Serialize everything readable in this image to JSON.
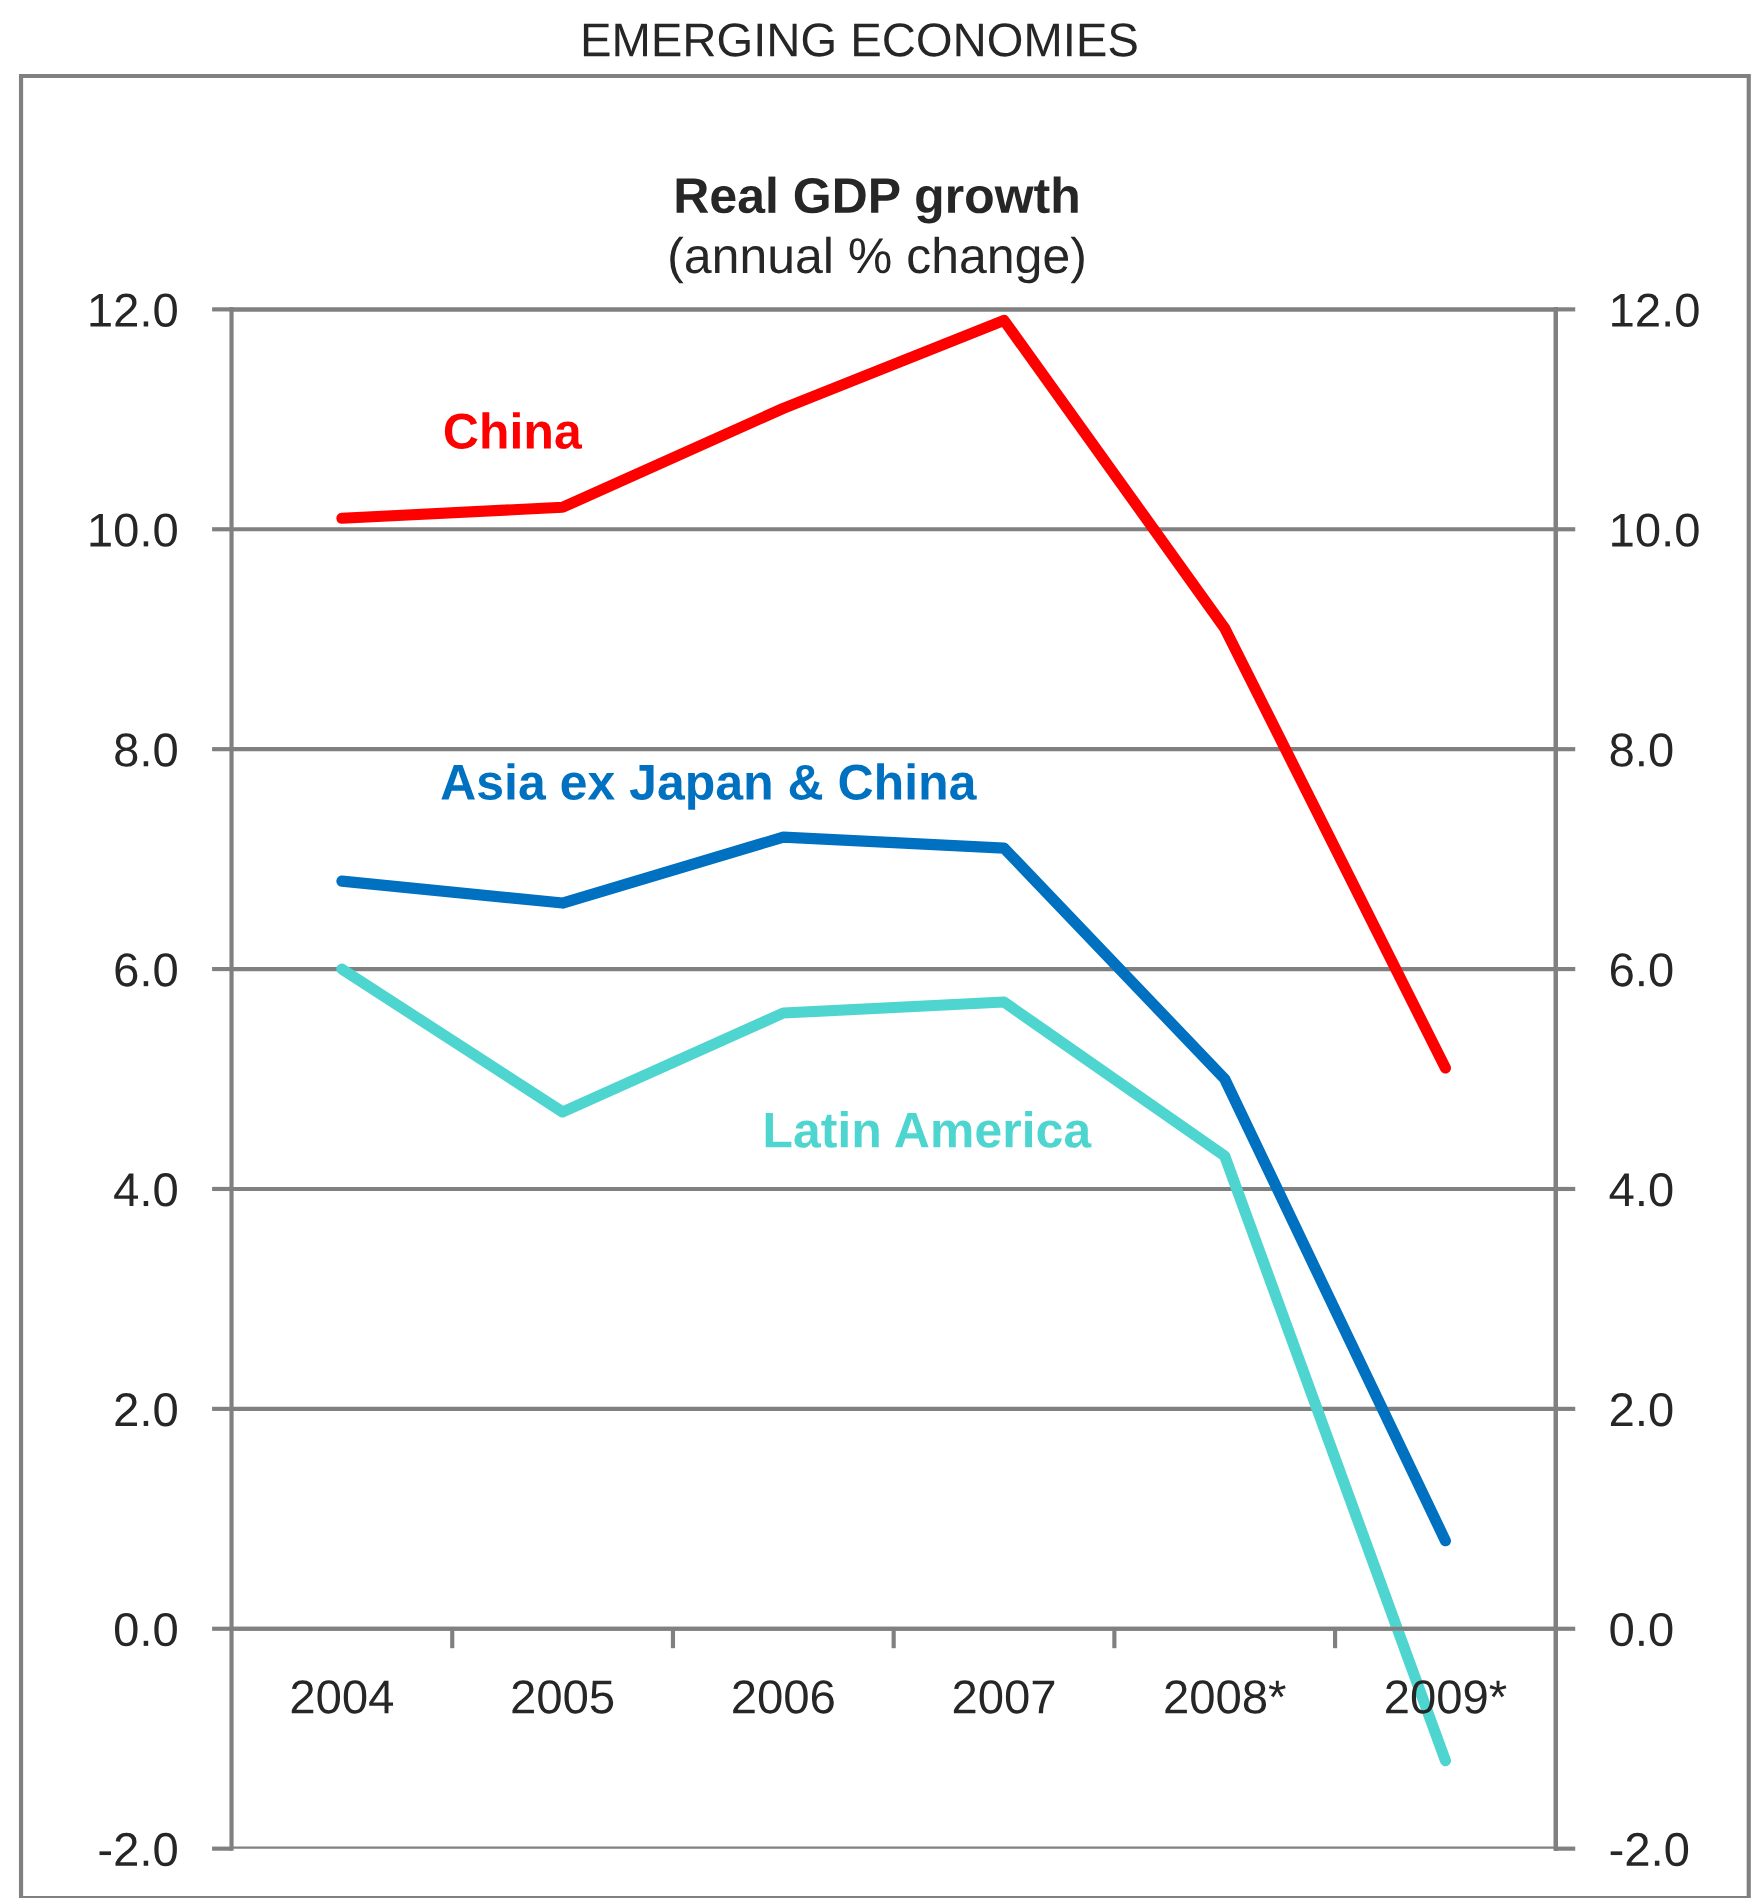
{
  "chart_data": {
    "type": "line",
    "title": "Real GDP growth",
    "subtitle": "(annual % change)",
    "annotations": [
      "EMERGING ECONOMIES"
    ],
    "categories": [
      "2004",
      "2005",
      "2006",
      "2007",
      "2008*",
      "2009*"
    ],
    "series": [
      {
        "name": "China",
        "color": "#ff0000",
        "values": [
          10.1,
          10.2,
          11.1,
          11.9,
          9.1,
          5.1
        ]
      },
      {
        "name": "Asia ex Japan & China",
        "color": "#0070c0",
        "values": [
          6.8,
          6.6,
          7.2,
          7.1,
          5.0,
          0.8
        ]
      },
      {
        "name": "Latin America",
        "color": "#4fd5d0",
        "values": [
          6.0,
          4.7,
          5.6,
          5.7,
          4.3,
          -1.2
        ]
      }
    ],
    "ylim": [
      -2,
      12
    ],
    "yticks": [
      {
        "value": -2,
        "label": "-2.0"
      },
      {
        "value": 0,
        "label": "0.0"
      },
      {
        "value": 2,
        "label": "2.0"
      },
      {
        "value": 4,
        "label": "4.0"
      },
      {
        "value": 6,
        "label": "6.0"
      },
      {
        "value": 8,
        "label": "8.0"
      },
      {
        "value": 10,
        "label": "10.0"
      },
      {
        "value": 12,
        "label": "12.0"
      }
    ],
    "y2lim": [
      -2,
      12
    ],
    "y2ticks": [
      {
        "value": -2,
        "label": "-2.0"
      },
      {
        "value": 0,
        "label": "0.0"
      },
      {
        "value": 2,
        "label": "2.0"
      },
      {
        "value": 4,
        "label": "4.0"
      },
      {
        "value": 6,
        "label": "6.0"
      },
      {
        "value": 8,
        "label": "8.0"
      },
      {
        "value": 10,
        "label": "10.0"
      },
      {
        "value": 12,
        "label": "12.0"
      }
    ],
    "grid": "y",
    "legend": false,
    "marker": "none",
    "line_style": "solid"
  }
}
